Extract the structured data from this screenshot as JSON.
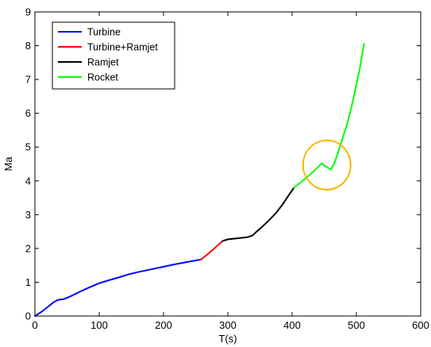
{
  "chart_data": {
    "type": "line",
    "title": "",
    "xlabel": "T(s)",
    "ylabel": "Ma",
    "xlim": [
      0,
      600
    ],
    "ylim": [
      0,
      9
    ],
    "xticks": [
      0,
      100,
      200,
      300,
      400,
      500,
      600
    ],
    "yticks": [
      0,
      1,
      2,
      3,
      4,
      5,
      6,
      7,
      8,
      9
    ],
    "grid": false,
    "legend": "top-left",
    "series": [
      {
        "name": "Turbine",
        "color": "#0000ff",
        "x": [
          0,
          10,
          20,
          30,
          36,
          45,
          55,
          70,
          85,
          100,
          115,
          130,
          145,
          160,
          180,
          200,
          220,
          240,
          258
        ],
        "y": [
          0,
          0.12,
          0.27,
          0.42,
          0.48,
          0.5,
          0.58,
          0.72,
          0.85,
          0.97,
          1.06,
          1.14,
          1.23,
          1.3,
          1.38,
          1.46,
          1.54,
          1.61,
          1.67
        ]
      },
      {
        "name": "Turbine+Ramjet",
        "color": "#ff0000",
        "x": [
          258,
          270,
          282,
          292
        ],
        "y": [
          1.67,
          1.85,
          2.05,
          2.22
        ]
      },
      {
        "name": "Ramjet",
        "color": "#000000",
        "x": [
          292,
          300,
          315,
          330,
          338,
          345,
          355,
          365,
          375,
          385,
          395,
          403
        ],
        "y": [
          2.22,
          2.27,
          2.3,
          2.33,
          2.38,
          2.5,
          2.67,
          2.85,
          3.05,
          3.3,
          3.58,
          3.8
        ]
      },
      {
        "name": "Rocket",
        "color": "#00ff00",
        "x": [
          403,
          415,
          430,
          440,
          446,
          450,
          455,
          460,
          465,
          470,
          475,
          480,
          485,
          490,
          495,
          500,
          505,
          510,
          512
        ],
        "y": [
          3.8,
          3.98,
          4.22,
          4.4,
          4.52,
          4.45,
          4.4,
          4.33,
          4.5,
          4.75,
          5.05,
          5.35,
          5.65,
          6.0,
          6.4,
          6.85,
          7.3,
          7.85,
          8.05
        ]
      }
    ],
    "annotations": [
      {
        "shape": "circle",
        "color": "#f5b800",
        "cx": 454,
        "cy": 4.47,
        "r_x": 37,
        "r_y": 0.73
      }
    ]
  }
}
